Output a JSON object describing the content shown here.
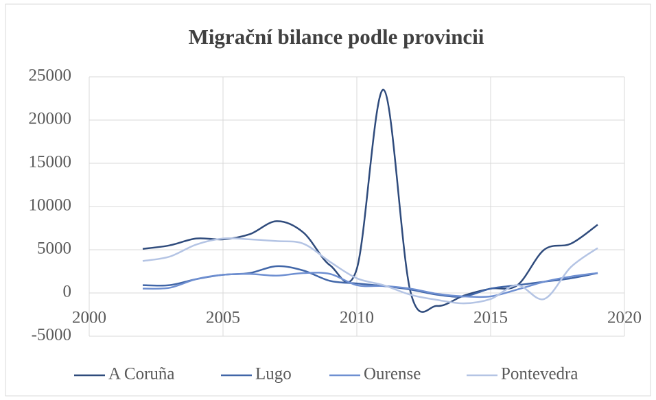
{
  "chart_data": {
    "type": "line",
    "title": "Migrační  bilance podle provincii",
    "x": [
      2002,
      2003,
      2004,
      2005,
      2006,
      2007,
      2008,
      2009,
      2010,
      2011,
      2012,
      2013,
      2014,
      2015,
      2016,
      2017,
      2018,
      2019
    ],
    "series": [
      {
        "name": "A Coruña",
        "color": "#2f4b7c",
        "values": [
          5100,
          5500,
          6300,
          6200,
          6800,
          8300,
          7000,
          3200,
          2800,
          23500,
          200,
          -1500,
          -300,
          500,
          900,
          5000,
          5700,
          7900
        ]
      },
      {
        "name": "Lugo",
        "color": "#4166a8",
        "values": [
          900,
          900,
          1600,
          2100,
          2300,
          3100,
          2600,
          1400,
          1100,
          800,
          400,
          -200,
          -400,
          500,
          900,
          1300,
          1700,
          2300
        ]
      },
      {
        "name": "Ourense",
        "color": "#6e8fd1",
        "values": [
          500,
          600,
          1600,
          2100,
          2200,
          2000,
          2300,
          2200,
          900,
          800,
          500,
          -100,
          -400,
          -400,
          400,
          1300,
          1900,
          2300
        ]
      },
      {
        "name": "Pontevedra",
        "color": "#b4c4e4",
        "values": [
          3700,
          4200,
          5600,
          6300,
          6200,
          6000,
          5700,
          3600,
          1700,
          900,
          -200,
          -800,
          -1200,
          -700,
          900,
          -700,
          3000,
          5200
        ]
      }
    ],
    "xlim": [
      2000,
      2020
    ],
    "xticks": [
      2000,
      2005,
      2010,
      2015,
      2020
    ],
    "ylim": [
      -5000,
      25000
    ],
    "yticks": [
      -5000,
      0,
      5000,
      10000,
      15000,
      20000,
      25000
    ],
    "grid": true,
    "legend": "bottom"
  }
}
